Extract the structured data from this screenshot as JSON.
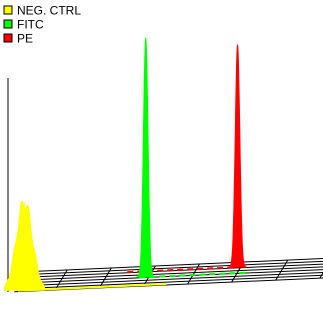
{
  "chart_data": {
    "type": "area",
    "style": "3d-stacked-histogram",
    "legend_placement": "top-left",
    "series": [
      {
        "name": "NEG. CTRL",
        "color": "#ffff00",
        "peak_position": 0.05,
        "peak_height": 0.4,
        "width": "broad"
      },
      {
        "name": "FITC",
        "color": "#00ff00",
        "peak_position": 0.42,
        "peak_height": 1.0,
        "width": "narrow"
      },
      {
        "name": "PE",
        "color": "#ff0000",
        "peak_position": 0.7,
        "peak_height": 0.93,
        "width": "narrow"
      }
    ],
    "grid": true
  }
}
